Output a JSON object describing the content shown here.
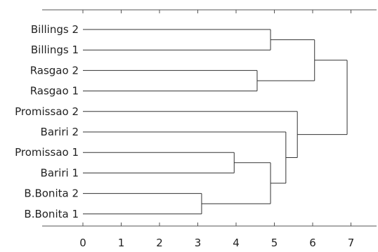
{
  "chart_data": {
    "type": "dendrogram",
    "title": "",
    "xlabel": "",
    "ylabel": "",
    "xlim": [
      0,
      7.8
    ],
    "x_ticks": [
      0,
      1,
      2,
      3,
      4,
      5,
      6,
      7
    ],
    "leaves": [
      "Billings 2",
      "Billings 1",
      "Rasgao 2",
      "Rasgao 1",
      "Promissao 2",
      "Bariri 2",
      "Promissao 1",
      "Bariri 1",
      "B.Bonita 2",
      "B.Bonita 1"
    ],
    "merges": [
      {
        "left": "Billings 2",
        "right": "Billings 1",
        "height": 4.9
      },
      {
        "left": "Rasgao 2",
        "right": "Rasgao 1",
        "height": 4.55
      },
      {
        "left": "Billings 2 + Billings 1",
        "right": "Rasgao 2 + Rasgao 1",
        "height": 6.05
      },
      {
        "left": "Promissao 1",
        "right": "Bariri 1",
        "height": 3.95
      },
      {
        "left": "B.Bonita 2",
        "right": "B.Bonita 1",
        "height": 3.1
      },
      {
        "left": "Promissao 1 + Bariri 1",
        "right": "B.Bonita 2 + B.Bonita 1",
        "height": 4.9
      },
      {
        "left": "Bariri 2",
        "right": "Promissao 1 + Bariri 1 + B.Bonita 2 + B.Bonita 1",
        "height": 5.3
      },
      {
        "left": "Promissao 2",
        "right": "Bariri 2 + Promissao 1 + Bariri 1 + B.Bonita 2 + B.Bonita 1",
        "height": 5.6
      },
      {
        "left": "Billings + Rasgao",
        "right": "Promissao + Bariri + B.Bonita",
        "height": 6.9
      }
    ]
  }
}
